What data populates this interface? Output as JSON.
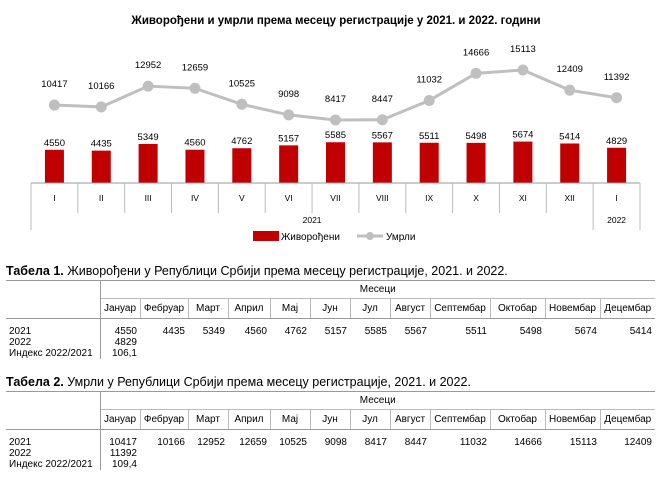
{
  "chart_data": {
    "type": "bar+line",
    "title": "Живорођени и умрли према месецу регистрације у 2021.  и 2022. години",
    "categories": [
      "I",
      "II",
      "III",
      "IV",
      "V",
      "VI",
      "VII",
      "VIII",
      "IX",
      "X",
      "XI",
      "XII",
      "I"
    ],
    "year_groups": [
      {
        "label": "2021",
        "span": 12
      },
      {
        "label": "2022",
        "span": 1
      }
    ],
    "series": [
      {
        "name": "Живорођени",
        "type": "bar",
        "color": "#c00000",
        "values": [
          4550,
          4435,
          5349,
          4560,
          4762,
          5157,
          5585,
          5567,
          5511,
          5498,
          5674,
          5414,
          4829
        ]
      },
      {
        "name": "Умрли",
        "type": "line",
        "color": "#bfbfbf",
        "values": [
          10417,
          10166,
          12952,
          12659,
          10525,
          9098,
          8417,
          8447,
          11032,
          14666,
          15113,
          12409,
          11392
        ]
      }
    ],
    "legend": "bottom"
  },
  "table1": {
    "title_bold": "Табела 1.",
    "title": " Живорођени у Републици Србији према месецу регистрације, 2021. и 2022.",
    "group_header": "Месеци",
    "months": [
      "Јануар",
      "Фебруар",
      "Март",
      "Април",
      "Мај",
      "Јун",
      "Јул",
      "Август",
      "Септембар",
      "Октобар",
      "Новембар",
      "Децембар"
    ],
    "rows": [
      {
        "label": "2021",
        "values": [
          "4550",
          "4435",
          "5349",
          "4560",
          "4762",
          "5157",
          "5585",
          "5567",
          "5511",
          "5498",
          "5674",
          "5414"
        ]
      },
      {
        "label": "2022",
        "values": [
          "4829"
        ]
      },
      {
        "label": "Индекс 2022/2021",
        "values": [
          "106,1"
        ]
      }
    ]
  },
  "table2": {
    "title_bold": "Табела 2.",
    "title": " Умрли у Републици Србији према месецу регистрације, 2021. и 2022.",
    "group_header": "Месеци",
    "months": [
      "Јануар",
      "Фебруар",
      "Март",
      "Април",
      "Мај",
      "Јун",
      "Јул",
      "Август",
      "Септембар",
      "Октобар",
      "Новембар",
      "Децембар"
    ],
    "rows": [
      {
        "label": "2021",
        "values": [
          "10417",
          "10166",
          "12952",
          "12659",
          "10525",
          "9098",
          "8417",
          "8447",
          "11032",
          "14666",
          "15113",
          "12409"
        ]
      },
      {
        "label": "2022",
        "values": [
          "11392"
        ]
      },
      {
        "label": "Индекс 2022/2021",
        "values": [
          "109,4"
        ]
      }
    ]
  }
}
